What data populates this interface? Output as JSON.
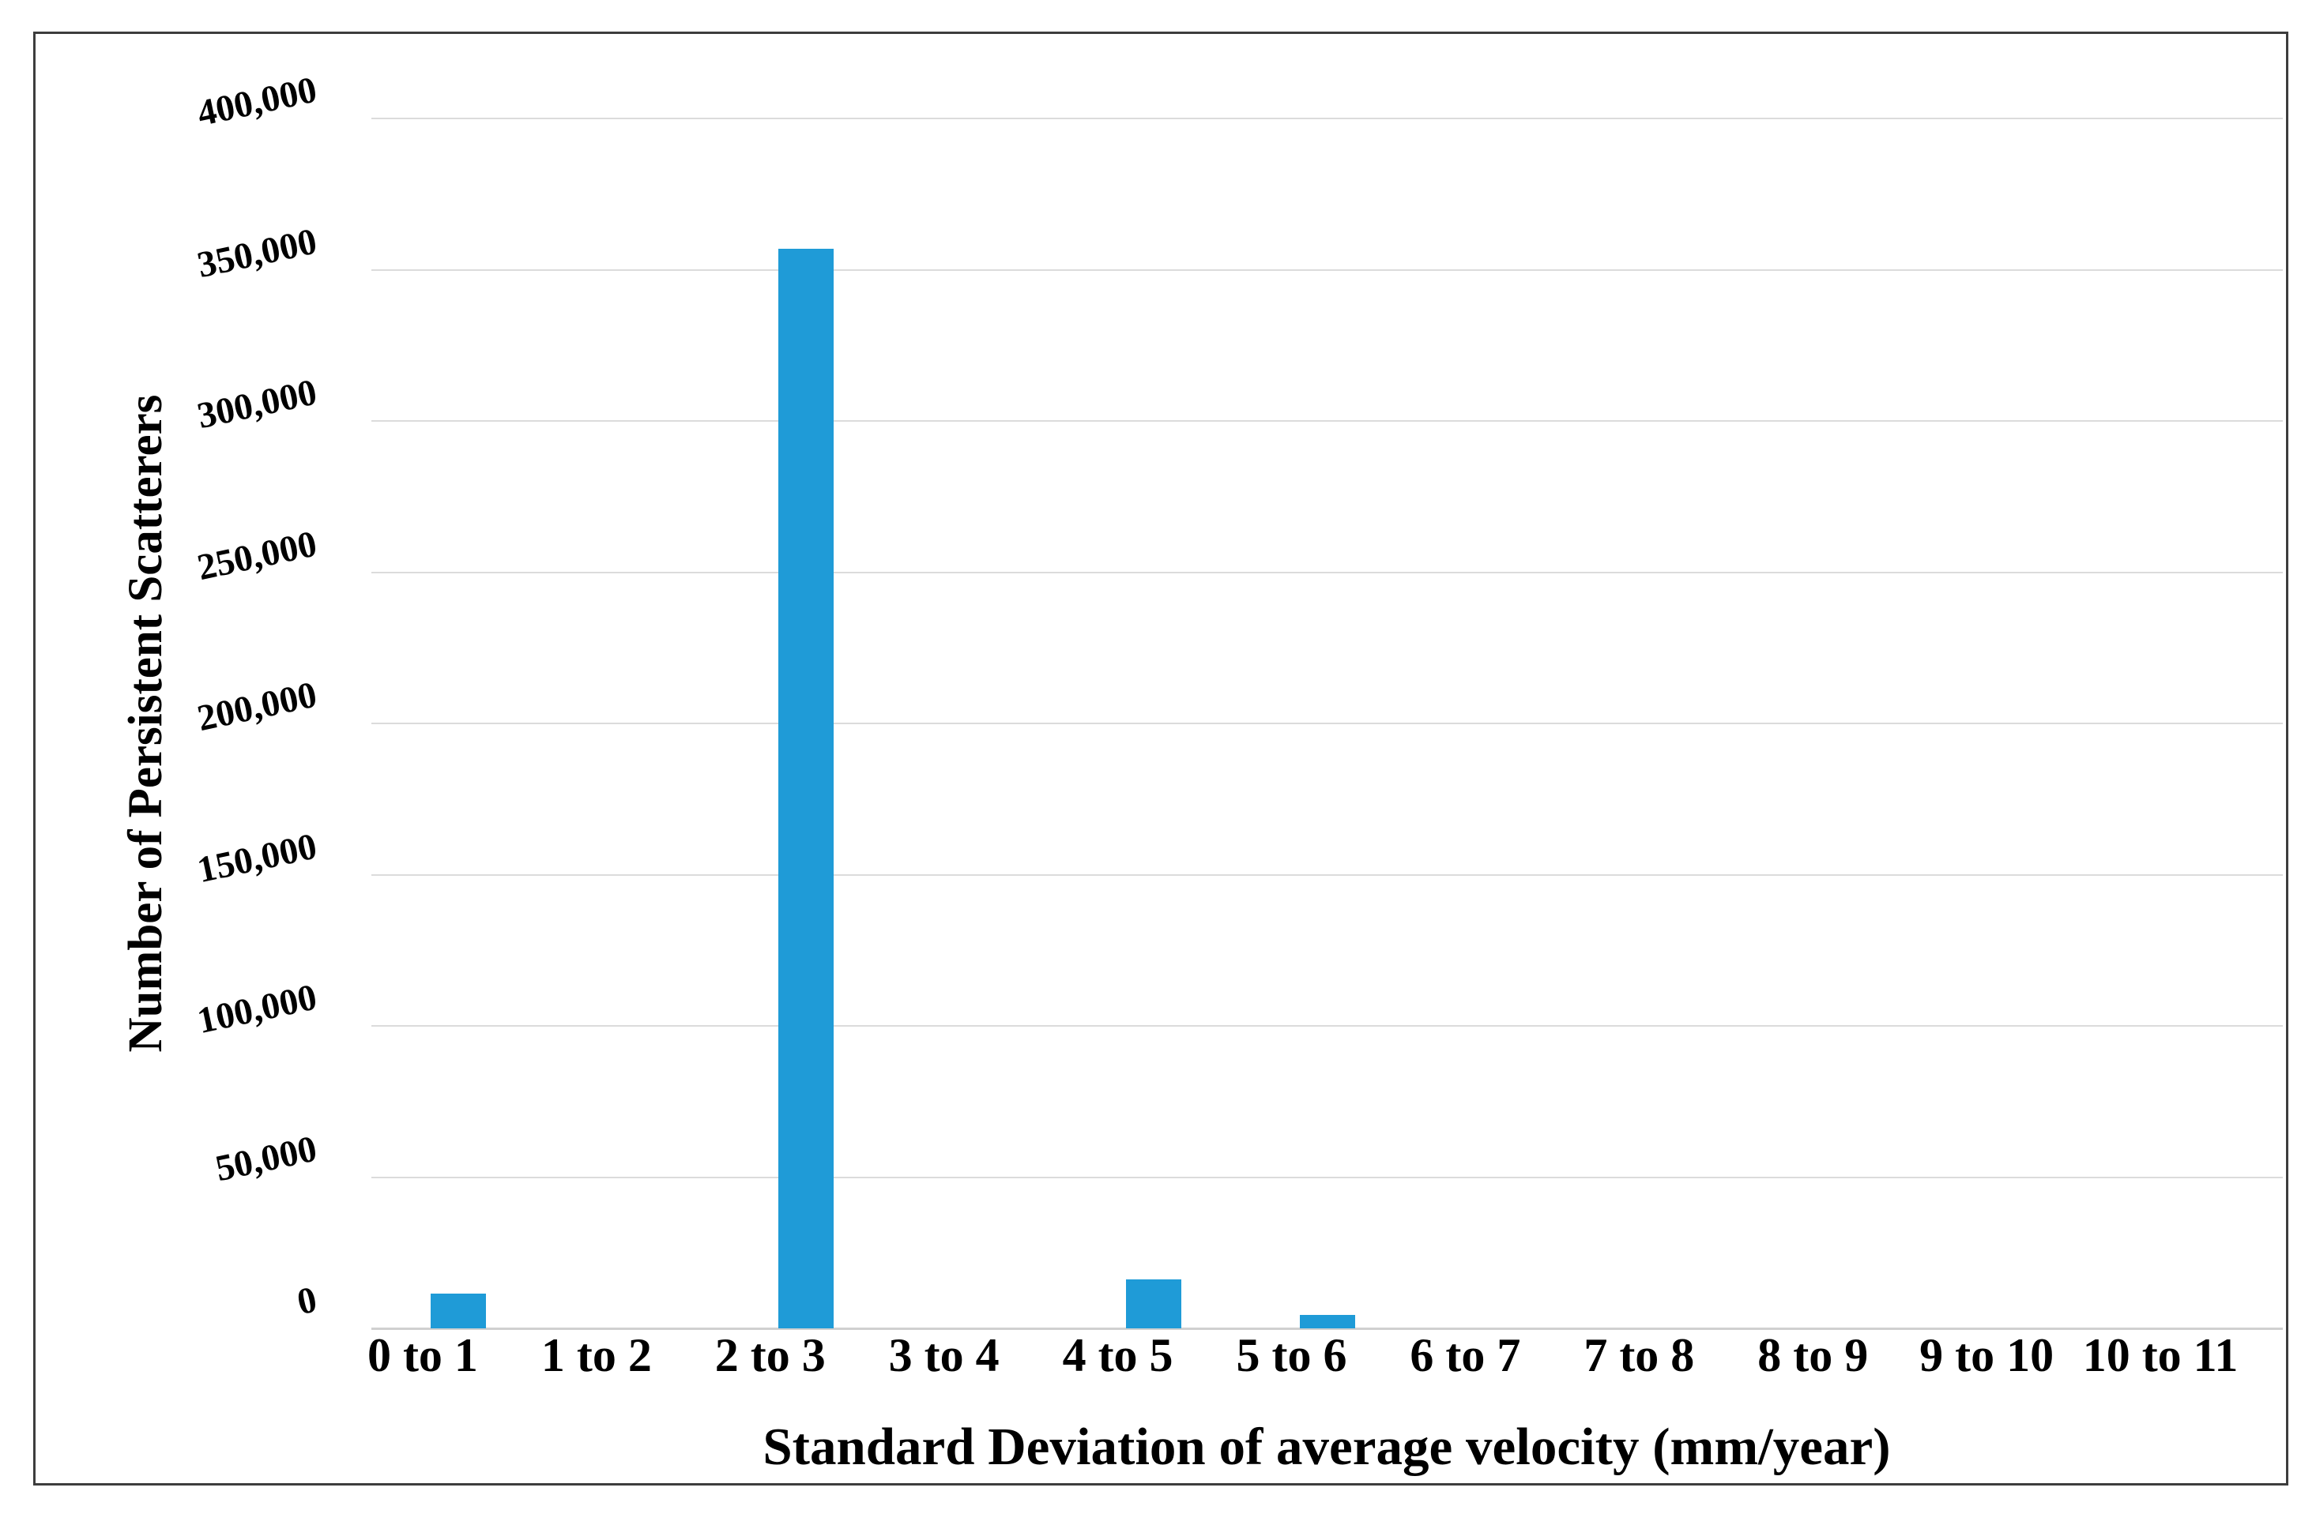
{
  "figure": {
    "background_color": "#FFFFFF",
    "border_color": "#3D3D3D"
  },
  "chart_data": {
    "type": "bar",
    "title": "",
    "xlabel": "Standard Deviation of average velocity (mm/year)",
    "ylabel": "Number of Persistent Scatterers",
    "categories": [
      "0 to 1",
      "1 to 2",
      "2 to 3",
      "3 to 4",
      "4 to 5",
      "5 to 6",
      "6 to 7",
      "7 to 8",
      "8 to 9",
      "9 to 10",
      "10 to 11"
    ],
    "values": [
      11500,
      0,
      357000,
      0,
      16300,
      4500,
      0,
      0,
      0,
      0,
      0
    ],
    "ylim": [
      0,
      400000
    ],
    "ytick_step": 50000,
    "ytick_labels": [
      "0",
      "50,000",
      "100,000",
      "150,000",
      "200,000",
      "250,000",
      "300,000",
      "350,000",
      "400,000"
    ],
    "bar_color": "#1F9BD7",
    "gridline_color": "#DBDBDB",
    "axis_line_color": "#D0D0D0",
    "grid": true,
    "legend": false
  }
}
